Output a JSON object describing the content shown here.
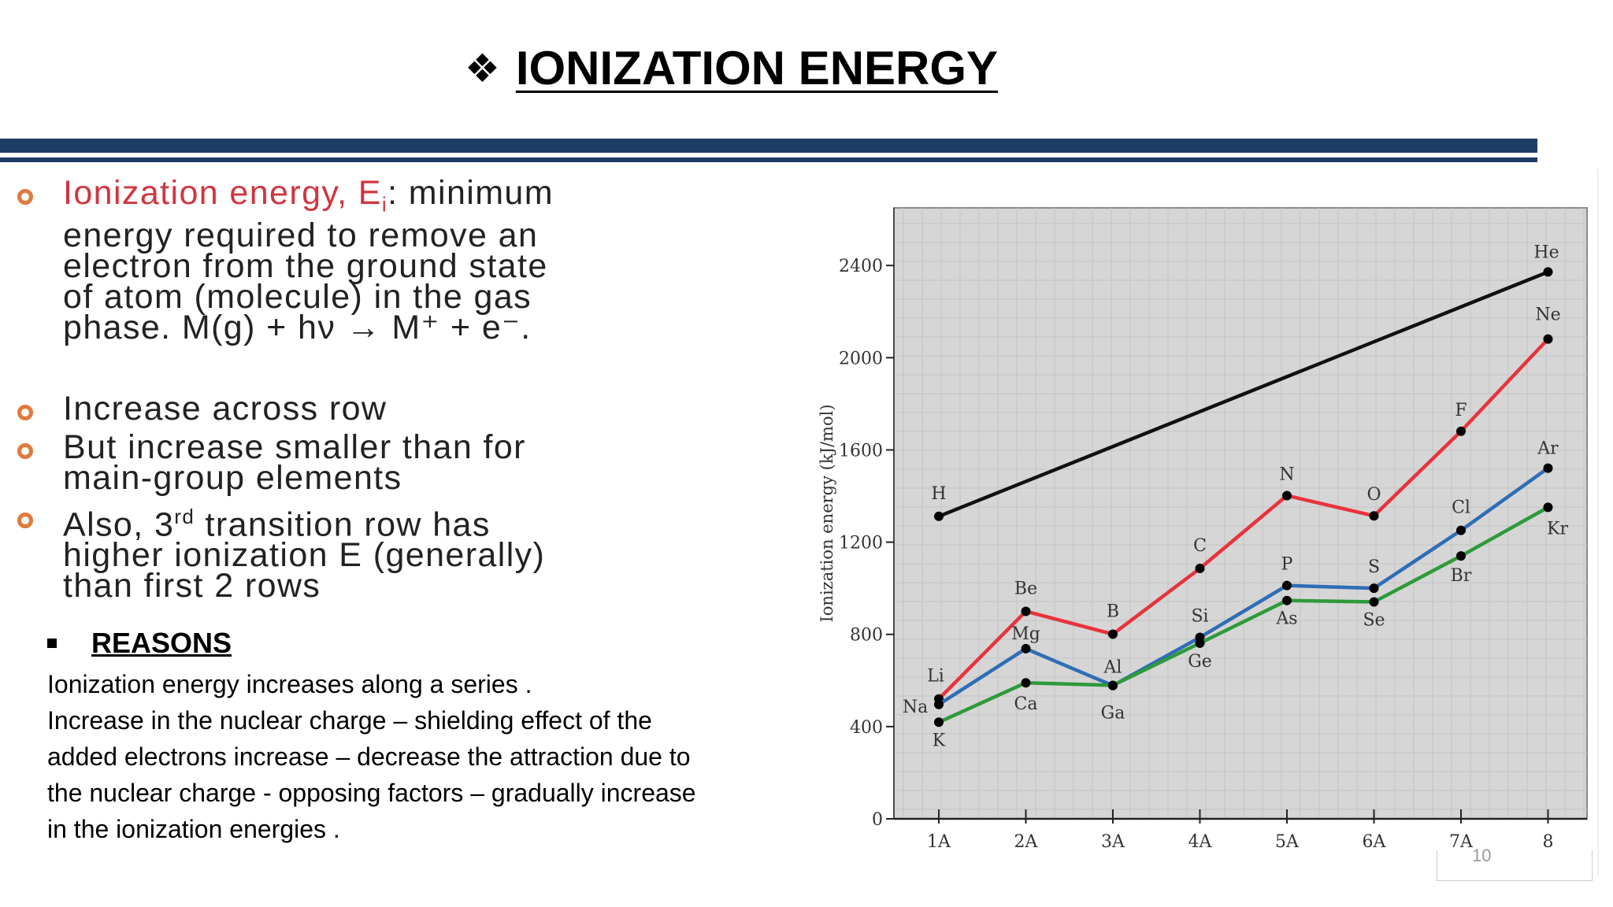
{
  "slide": {
    "title_bullet": "❖",
    "title": "IONIZATION ENERGY"
  },
  "bullets": {
    "item1_term": "Ionization energy, E",
    "item1_sub": "i",
    "item1_lines": [
      ": minimum",
      "energy required to remove an",
      "electron from the ground state",
      "of atom (molecule) in the gas",
      "phase. M(g) + hν → M⁺ + e⁻."
    ],
    "item2": "Increase across row",
    "item3_lines": [
      "But increase smaller than for",
      "main-group elements"
    ],
    "item4_pre": "Also, 3",
    "item4_sup": "rd",
    "item4_lines": [
      " transition row has",
      "higher ionization E (generally)",
      "than first 2 rows"
    ]
  },
  "reasons": {
    "heading": "REASONS",
    "lines": [
      "Ionization energy increases along a series .",
      "Increase in the nuclear charge – shielding effect of the",
      "added electrons increase – decrease the attraction due to",
      "the nuclear charge  - opposing factors – gradually increase",
      "in the ionization energies ."
    ]
  },
  "colors": {
    "accent_bar": "#1f3c66",
    "bullet_ring": "#e07a3a",
    "term_red": "#d0353f"
  },
  "chart_data": {
    "type": "line",
    "ylabel": "Ionization energy (kJ/mol)",
    "xlabel": "",
    "categories": [
      "1A",
      "2A",
      "3A",
      "4A",
      "5A",
      "6A",
      "7A",
      "8"
    ],
    "yticks": [
      0,
      400,
      800,
      1200,
      1600,
      2000,
      2400
    ],
    "ylim": [
      0,
      2650
    ],
    "grid": true,
    "series": [
      {
        "color": "#111111",
        "labels": [
          "H",
          "He"
        ],
        "values": [
          1312,
          null,
          null,
          null,
          null,
          null,
          null,
          2372
        ]
      },
      {
        "color": "#e8333c",
        "labels": [
          "Li",
          "Be",
          "B",
          "C",
          "N",
          "O",
          "F",
          "Ne"
        ],
        "values": [
          520,
          900,
          801,
          1086,
          1402,
          1314,
          1681,
          2081
        ]
      },
      {
        "color": "#2f6db5",
        "labels": [
          "Na",
          "Mg",
          "Al",
          "Si",
          "P",
          "S",
          "Cl",
          "Ar"
        ],
        "values": [
          496,
          738,
          578,
          787,
          1012,
          1000,
          1251,
          1521
        ]
      },
      {
        "color": "#2e9a3a",
        "labels": [
          "K",
          "Ca",
          "Ga",
          "Ge",
          "As",
          "Se",
          "Br",
          "Kr"
        ],
        "values": [
          419,
          590,
          579,
          762,
          947,
          941,
          1140,
          1351
        ]
      }
    ]
  },
  "page_number": "10"
}
